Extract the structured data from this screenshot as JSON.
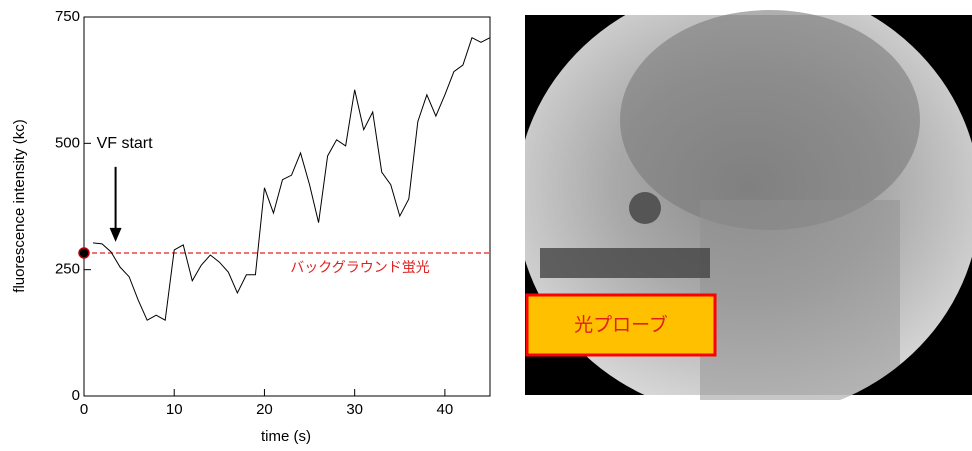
{
  "chart_data": {
    "type": "line",
    "xlabel": "time (s)",
    "ylabel": "fluorescence intensity (kc)",
    "x": [
      1,
      2,
      3,
      4,
      5,
      6,
      7,
      8,
      9,
      10,
      11,
      12,
      13,
      14,
      15,
      16,
      17,
      18,
      19,
      20,
      21,
      22,
      23,
      24,
      25,
      26,
      27,
      28,
      29,
      30,
      31,
      32,
      33,
      34,
      35,
      36,
      37,
      38,
      39,
      40,
      41,
      42,
      43,
      44,
      45
    ],
    "series": [
      {
        "color": "#000000",
        "values": [
          303,
          301,
          285,
          255,
          236,
          190,
          150,
          160,
          150,
          289,
          299,
          228,
          259,
          279,
          265,
          245,
          204,
          240,
          240,
          412,
          362,
          428,
          437,
          481,
          418,
          343,
          475,
          507,
          495,
          606,
          527,
          562,
          443,
          418,
          356,
          390,
          543,
          596,
          554,
          596,
          642,
          655,
          709,
          700,
          709
        ]
      }
    ],
    "xlim": [
      0,
      45
    ],
    "xticks": [
      0,
      10,
      20,
      30,
      40
    ],
    "ylim": [
      0,
      750
    ],
    "yticks": [
      0,
      250,
      500,
      750
    ],
    "reference_line": {
      "value": 283,
      "label": "バックグラウンド蛍光",
      "color": "#e02020"
    },
    "start_marker": {
      "x": 0,
      "y": 283
    },
    "annotation": {
      "text": "VF start",
      "x": 3.5,
      "y": 305
    }
  },
  "photo": {
    "label": "光プローブ"
  }
}
